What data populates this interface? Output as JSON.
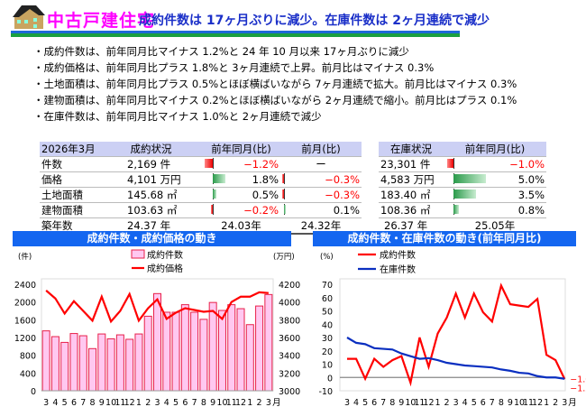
{
  "header": {
    "title": "中古戸建住宅",
    "headline": "成約件数は 17ヶ月ぶりに減少。在庫件数は 2ヶ月連続で減少",
    "icon": "house-icon"
  },
  "bullets": [
    "・成約件数は、前年同月比マイナス 1.2%と 24 年 10 月以来 17ヶ月ぶりに減少",
    "・成約価格は、前年同月比プラス 1.8%と 3ヶ月連続で上昇。前月比はマイナス 0.3%",
    "・土地面積は、前年同月比プラス 0.5%とほぼ横ばいながら 7ヶ月連続で拡大。前月比はマイナス 0.3%",
    "・建物面積は、前年同月比マイナス 0.2%とほぼ横ばいながら 2ヶ月連続で縮小。前月比はプラス 0.1%",
    "・在庫件数は、前年同月比マイナス 1.0%と 2ヶ月連続で減少"
  ],
  "contract_table": {
    "headers": [
      "2026年3月",
      "成約状況",
      "前年同月(比)",
      "前月(比)"
    ],
    "rows": [
      {
        "label": "件数",
        "value": "2,169 件",
        "yoy": "−1.2%",
        "yoy_num": -1.2,
        "mom": "ー",
        "mom_num": null
      },
      {
        "label": "価格",
        "value": "4,101 万円",
        "yoy": "1.8%",
        "yoy_num": 1.8,
        "mom": "−0.3%",
        "mom_num": -0.3
      },
      {
        "label": "土地面積",
        "value": "145.68 ㎡",
        "yoy": "0.5%",
        "yoy_num": 0.5,
        "mom": "−0.3%",
        "mom_num": -0.3
      },
      {
        "label": "建物面積",
        "value": "103.63 ㎡",
        "yoy": "−0.2%",
        "yoy_num": -0.2,
        "mom": "0.1%",
        "mom_num": 0.1
      }
    ],
    "age": {
      "label": "築年数",
      "value": "24.37 年",
      "yoy": "24.03年",
      "mom": "24.32年"
    }
  },
  "inventory_table": {
    "headers": [
      "在庫状況",
      "前年同月(比)"
    ],
    "rows": [
      {
        "value": "23,301 件",
        "yoy": "−1.0%",
        "yoy_num": -1.0
      },
      {
        "value": "4,583 万円",
        "yoy": "5.0%",
        "yoy_num": 5.0
      },
      {
        "value": "183.40 ㎡",
        "yoy": "3.5%",
        "yoy_num": 3.5
      },
      {
        "value": "108.36 ㎡",
        "yoy": "0.8%",
        "yoy_num": 0.8
      }
    ],
    "age": {
      "value": "26.37 年",
      "yoy": "25.05年"
    }
  },
  "colors": {
    "red": "#ff0000",
    "blue": "#0a2fc0",
    "bar_fill": "#ffc8f0",
    "bar_stroke": "#e8204a",
    "title_bg": "#1466f0"
  },
  "chart_data": [
    {
      "type": "bar+line",
      "title": "成約件数・成約価格の動き",
      "categories": [
        "3",
        "4",
        "5",
        "6",
        "7",
        "8",
        "9",
        "10",
        "11",
        "12",
        "1",
        "2",
        "3",
        "4",
        "5",
        "6",
        "7",
        "8",
        "9",
        "10",
        "11",
        "12",
        "1",
        "2",
        "3"
      ],
      "year_labels": [
        {
          "index": 0,
          "label": "'24"
        },
        {
          "index": 10,
          "label": "'25"
        },
        {
          "index": 22,
          "label": "'26"
        }
      ],
      "x_unit": "月\n年",
      "ylabel_left": "(件)",
      "ylabel_right": "(万円)",
      "ylim_left": [
        0,
        2400
      ],
      "yticks_left": [
        0,
        400,
        800,
        1200,
        1600,
        2000,
        2400
      ],
      "ylim_right": [
        3000,
        4200
      ],
      "yticks_right": [
        3000,
        3200,
        3400,
        3600,
        3800,
        4000,
        4200
      ],
      "legend_position": "top-center",
      "series": [
        {
          "name": "成約件数",
          "kind": "bar",
          "axis": "left",
          "values": [
            1350,
            1220,
            1090,
            1290,
            1240,
            950,
            1280,
            1170,
            1260,
            1160,
            1280,
            1680,
            2190,
            1770,
            1770,
            1940,
            1770,
            1610,
            1990,
            1810,
            1940,
            1850,
            1490,
            1910,
            2169
          ]
        },
        {
          "name": "成約価格",
          "kind": "line",
          "axis": "right",
          "values": [
            4130,
            4040,
            3870,
            4010,
            3900,
            3790,
            4060,
            3780,
            3900,
            4090,
            3790,
            3930,
            4030,
            3810,
            3880,
            3930,
            3910,
            3890,
            3900,
            3810,
            4000,
            4060,
            4060,
            4110,
            4101
          ]
        }
      ]
    },
    {
      "type": "line",
      "title": "成約件数・在庫件数の動き(前年同月比)",
      "categories": [
        "3",
        "4",
        "5",
        "6",
        "7",
        "8",
        "9",
        "10",
        "11",
        "12",
        "1",
        "2",
        "3",
        "4",
        "5",
        "6",
        "7",
        "8",
        "9",
        "10",
        "11",
        "12",
        "1",
        "2",
        "3"
      ],
      "year_labels": [
        {
          "index": 0,
          "label": "'24"
        },
        {
          "index": 10,
          "label": "'25"
        },
        {
          "index": 22,
          "label": "'26"
        }
      ],
      "x_unit": "月\n年",
      "ylabel": "(%)",
      "ylim": [
        -10,
        70
      ],
      "yticks": [
        -10,
        0,
        10,
        20,
        30,
        40,
        50,
        60,
        70
      ],
      "legend_position": "top-left",
      "end_labels": [
        "−1.0",
        "−1.2"
      ],
      "series": [
        {
          "name": "成約件数",
          "color": "#ff0000",
          "values": [
            14,
            14,
            -1,
            14,
            8,
            13,
            16,
            -4,
            30,
            8,
            33,
            45,
            63,
            45,
            63,
            49,
            42,
            69,
            55,
            54,
            53,
            59,
            17,
            13,
            -1.2
          ]
        },
        {
          "name": "在庫件数",
          "color": "#0a2fc0",
          "values": [
            30,
            26,
            25,
            22,
            21.5,
            21,
            18,
            16,
            14,
            14.5,
            13,
            11,
            10,
            9,
            8.5,
            8,
            7.5,
            6,
            5,
            3.5,
            3,
            1,
            0,
            0,
            -1.0
          ]
        }
      ]
    }
  ]
}
